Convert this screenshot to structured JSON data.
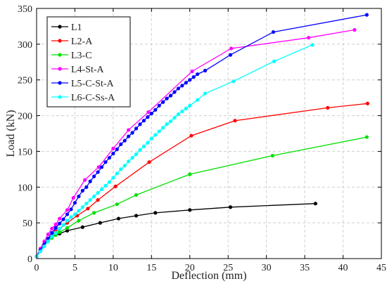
{
  "chart_data": {
    "type": "line",
    "title": "",
    "xlabel": "Deflection (mm)",
    "ylabel": "Load (kN)",
    "xlim": [
      0,
      45
    ],
    "ylim": [
      0,
      350
    ],
    "xticks": [
      0,
      5,
      10,
      15,
      20,
      25,
      30,
      35,
      40,
      45
    ],
    "yticks": [
      0,
      50,
      100,
      150,
      200,
      250,
      300,
      350
    ],
    "grid": true,
    "grid_style": "dashed",
    "legend_position": "top-left",
    "marker": "circle",
    "series": [
      {
        "name": "L1",
        "color": "#000000",
        "x": [
          0,
          0.5,
          1,
          1.5,
          2,
          2.5,
          3,
          4,
          6,
          8.3,
          10.7,
          13,
          15.5,
          20,
          25.3,
          36.4
        ],
        "y": [
          3,
          12,
          20,
          26,
          31,
          33,
          35,
          39,
          44,
          50,
          56,
          60,
          64,
          68,
          72,
          77
        ]
      },
      {
        "name": "L2-A",
        "color": "#ff0000",
        "x": [
          0,
          0.5,
          1,
          1.5,
          2,
          2.5,
          3,
          4,
          5.3,
          6.7,
          8,
          10.3,
          14.7,
          20.2,
          25.9,
          38,
          43.2
        ],
        "y": [
          3,
          12,
          20,
          27,
          33,
          38,
          42,
          50,
          60,
          70,
          82,
          101,
          135,
          172,
          193,
          211,
          217
        ]
      },
      {
        "name": "L3-C",
        "color": "#00e000",
        "x": [
          0,
          0.5,
          1,
          1.5,
          2,
          2.5,
          3,
          4,
          5.5,
          7.5,
          10.5,
          13,
          20,
          30.8,
          43.1
        ],
        "y": [
          3,
          11,
          18,
          24,
          29,
          33,
          37,
          43,
          53,
          64,
          76,
          89,
          118,
          144,
          170
        ]
      },
      {
        "name": "L4-St-A",
        "color": "#ff00ff",
        "x": [
          0,
          0.5,
          1,
          1.5,
          2,
          2.5,
          3,
          4,
          4.8,
          6.3,
          8.1,
          10,
          12,
          14.6,
          20.3,
          25.4,
          35.5,
          41.5
        ],
        "y": [
          3,
          14,
          24,
          34,
          42,
          48,
          56,
          68,
          85,
          110,
          128,
          154,
          180,
          205,
          262,
          294,
          309,
          320
        ]
      },
      {
        "name": "L5-C-St-A",
        "color": "#0000ff",
        "x": [
          0,
          0.5,
          1,
          1.5,
          2,
          2.5,
          3,
          3.5,
          4,
          4.5,
          5,
          5.5,
          6,
          6.5,
          7,
          7.5,
          8,
          8.5,
          9,
          9.5,
          10,
          10.5,
          11,
          11.5,
          12,
          12.5,
          13,
          13.5,
          14,
          14.5,
          15,
          15.5,
          16,
          16.5,
          17,
          17.5,
          18,
          18.5,
          19,
          19.5,
          20,
          20.5,
          21,
          22,
          25.3,
          30.9,
          43.1
        ],
        "y": [
          3,
          12,
          20,
          28,
          36,
          43,
          49,
          55,
          62,
          69,
          78,
          87,
          95,
          100,
          108,
          115,
          121,
          128,
          135,
          141,
          147,
          153,
          160,
          165,
          171,
          176,
          182,
          188,
          193,
          198,
          203,
          208,
          214,
          219,
          224,
          228,
          233,
          238,
          242,
          246,
          250,
          254,
          258,
          263,
          285,
          317,
          341
        ]
      },
      {
        "name": "L6-C-Ss-A",
        "color": "#00ffff",
        "x": [
          0,
          0.5,
          1,
          1.5,
          2,
          2.5,
          3,
          3.5,
          4,
          4.5,
          5,
          5.5,
          6,
          6.5,
          7,
          7.5,
          8,
          8.5,
          9,
          9.5,
          10,
          10.5,
          11,
          11.5,
          12,
          12.5,
          13,
          13.5,
          14,
          14.5,
          15,
          15.5,
          16,
          16.5,
          17,
          17.5,
          18,
          18.5,
          19,
          19.5,
          20,
          21,
          22,
          25.7,
          31,
          36
        ],
        "y": [
          3,
          10,
          17,
          24,
          31,
          36,
          42,
          47,
          53,
          58,
          62,
          67,
          72,
          77,
          82,
          87,
          92,
          97,
          102,
          107,
          113,
          119,
          125,
          130,
          136,
          141,
          146,
          152,
          157,
          162,
          168,
          173,
          178,
          183,
          188,
          192,
          197,
          202,
          206,
          210,
          214,
          222,
          231,
          248,
          276,
          299
        ]
      }
    ]
  }
}
